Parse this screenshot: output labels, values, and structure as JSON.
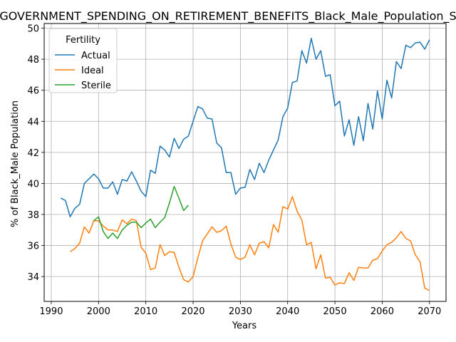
{
  "chart_data": {
    "type": "line",
    "title": "GOVERNMENT_SPENDING_ON_RETIREMENT_BENEFITS_Black_Male_Population_S",
    "xlabel": "Years",
    "ylabel": "% of Black_Male Population",
    "xlim": [
      1988.5,
      2073.5
    ],
    "ylim": [
      32.4,
      50.3
    ],
    "xticks": [
      1990,
      2000,
      2010,
      2020,
      2030,
      2040,
      2050,
      2060,
      2070
    ],
    "yticks": [
      34,
      36,
      38,
      40,
      42,
      44,
      46,
      48,
      50
    ],
    "grid": true,
    "legend": {
      "title": "Fertility",
      "placement": "top-left"
    },
    "series": [
      {
        "name": "Actual",
        "color": "#1f77b4",
        "x": [
          1992,
          1993,
          1994,
          1995,
          1996,
          1997,
          1998,
          1999,
          2000,
          2001,
          2002,
          2003,
          2004,
          2005,
          2006,
          2007,
          2008,
          2009,
          2010,
          2011,
          2012,
          2013,
          2014,
          2015,
          2016,
          2017,
          2018,
          2019,
          2020,
          2021,
          2022,
          2023,
          2024,
          2025,
          2026,
          2027,
          2028,
          2029,
          2030,
          2031,
          2032,
          2033,
          2034,
          2035,
          2036,
          2037,
          2038,
          2039,
          2040,
          2041,
          2042,
          2043,
          2044,
          2045,
          2046,
          2047,
          2048,
          2049,
          2050,
          2051,
          2052,
          2053,
          2054,
          2055,
          2056,
          2057,
          2058,
          2059,
          2060,
          2061,
          2062,
          2063,
          2064,
          2065,
          2066,
          2067,
          2068,
          2069,
          2070
        ],
        "y": [
          39.05,
          38.9,
          37.85,
          38.4,
          38.65,
          40.0,
          40.3,
          40.6,
          40.3,
          39.7,
          39.7,
          40.1,
          39.3,
          40.25,
          40.15,
          40.75,
          40.15,
          39.5,
          39.15,
          40.85,
          40.65,
          42.4,
          42.15,
          41.7,
          42.9,
          42.25,
          42.85,
          43.05,
          44.0,
          44.95,
          44.8,
          44.2,
          44.15,
          42.6,
          42.3,
          40.7,
          40.7,
          39.3,
          39.7,
          39.75,
          40.9,
          40.25,
          41.3,
          40.7,
          41.5,
          42.15,
          42.8,
          44.3,
          44.85,
          46.5,
          46.6,
          48.55,
          47.75,
          49.35,
          48.0,
          48.55,
          46.9,
          47.0,
          45.0,
          45.3,
          43.05,
          44.1,
          42.45,
          44.3,
          42.75,
          45.15,
          43.5,
          45.95,
          44.15,
          46.65,
          45.5,
          47.85,
          47.4,
          48.9,
          48.75,
          49.05,
          49.1,
          48.65,
          49.25
        ]
      },
      {
        "name": "Ideal",
        "color": "#ff7f0e",
        "x": [
          1994,
          1995,
          1996,
          1997,
          1998,
          1999,
          2000,
          2001,
          2002,
          2003,
          2004,
          2005,
          2006,
          2007,
          2008,
          2009,
          2010,
          2011,
          2012,
          2013,
          2014,
          2015,
          2016,
          2017,
          2018,
          2019,
          2020,
          2021,
          2022,
          2023,
          2024,
          2025,
          2026,
          2027,
          2028,
          2029,
          2030,
          2031,
          2032,
          2033,
          2034,
          2035,
          2036,
          2037,
          2038,
          2039,
          2040,
          2041,
          2042,
          2043,
          2044,
          2045,
          2046,
          2047,
          2048,
          2049,
          2050,
          2051,
          2052,
          2053,
          2054,
          2055,
          2056,
          2057,
          2058,
          2059,
          2060,
          2061,
          2062,
          2063,
          2064,
          2065,
          2066,
          2067,
          2068,
          2069,
          2070
        ],
        "y": [
          35.6,
          35.8,
          36.15,
          37.2,
          36.8,
          37.6,
          37.6,
          37.25,
          37.0,
          37.0,
          36.9,
          37.65,
          37.4,
          37.7,
          37.6,
          35.9,
          35.5,
          34.45,
          34.55,
          36.05,
          35.35,
          35.6,
          35.55,
          34.6,
          33.8,
          33.65,
          34.0,
          35.2,
          36.3,
          36.75,
          37.2,
          36.85,
          36.95,
          37.25,
          36.1,
          35.25,
          35.1,
          35.25,
          36.05,
          35.4,
          36.15,
          36.25,
          35.85,
          37.35,
          36.85,
          38.5,
          38.35,
          39.15,
          38.2,
          37.65,
          36.05,
          36.2,
          34.5,
          35.4,
          33.9,
          33.95,
          33.45,
          33.6,
          33.55,
          34.25,
          33.75,
          34.6,
          34.55,
          34.55,
          35.05,
          35.15,
          35.65,
          36.05,
          36.2,
          36.5,
          36.9,
          36.45,
          36.3,
          35.4,
          34.95,
          33.25,
          33.1
        ]
      },
      {
        "name": "Sterile",
        "color": "#2ca02c",
        "x": [
          1999,
          2000,
          2001,
          2002,
          2003,
          2004,
          2005,
          2006,
          2007,
          2008,
          2009,
          2010,
          2011,
          2012,
          2013,
          2014,
          2015,
          2016,
          2017,
          2018,
          2019
        ],
        "y": [
          37.6,
          37.85,
          36.9,
          36.45,
          36.8,
          36.45,
          37.0,
          37.3,
          37.5,
          37.5,
          37.15,
          37.45,
          37.7,
          37.15,
          37.5,
          37.8,
          38.75,
          39.8,
          39.05,
          38.25,
          38.6
        ]
      }
    ]
  }
}
